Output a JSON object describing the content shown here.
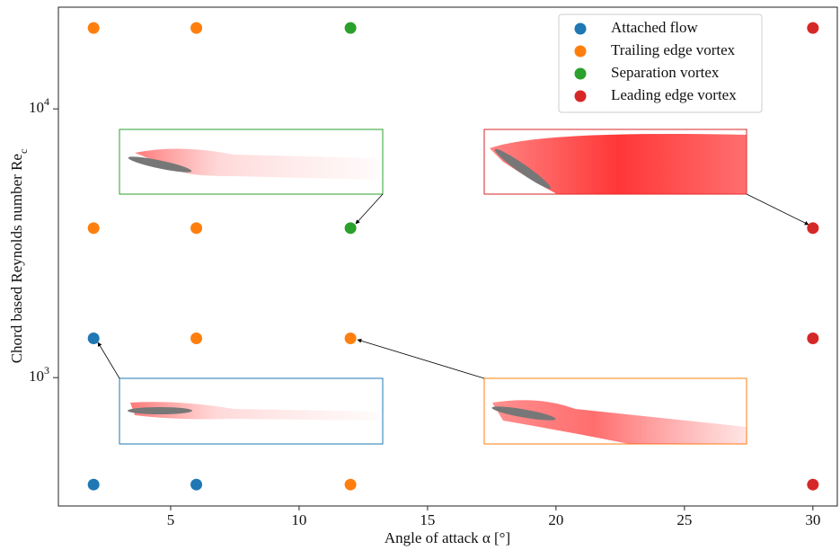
{
  "chart_data": {
    "type": "scatter",
    "x_label": "Angle of attack α [°]",
    "y_label": "Chord based Reynolds number Re_c",
    "xlim": [
      0.63,
      30.95
    ],
    "ylim": [
      333,
      23900
    ],
    "log_y": true,
    "xticks": [
      5,
      10,
      15,
      20,
      25,
      30
    ],
    "yticks": [
      {
        "value": 1000,
        "label": "10^3"
      },
      {
        "value": 10000,
        "label": "10^4"
      }
    ],
    "legend": "upper right",
    "series": [
      {
        "name": "Attached flow",
        "color": "#1f77b4",
        "x": [
          2,
          2,
          6
        ],
        "values": [
          1400,
          400,
          400
        ]
      },
      {
        "name": "Trailing edge vortex",
        "color": "#ff7f0e",
        "x": [
          2,
          6,
          2,
          6,
          6,
          12,
          12
        ],
        "values": [
          20000,
          20000,
          3600,
          3600,
          1400,
          1400,
          400
        ]
      },
      {
        "name": "Separation vortex",
        "color": "#2ca02c",
        "x": [
          12,
          12
        ],
        "values": [
          20000,
          3600
        ]
      },
      {
        "name": "Leading edge vortex",
        "color": "#d62728",
        "x": [
          30,
          30,
          30,
          30
        ],
        "values": [
          20000,
          3600,
          1400,
          400
        ]
      }
    ]
  }
}
